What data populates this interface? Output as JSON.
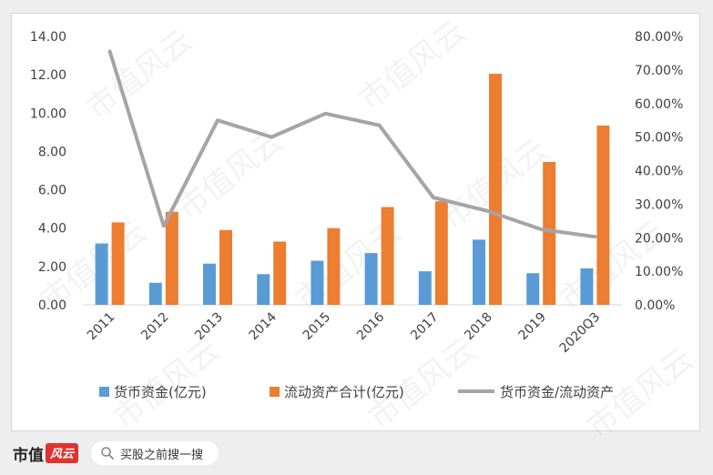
{
  "chart_data": {
    "type": "bar",
    "categories": [
      "2011",
      "2012",
      "2013",
      "2014",
      "2015",
      "2016",
      "2017",
      "2018",
      "2019",
      "2020Q3"
    ],
    "series": [
      {
        "name": "货币资金(亿元)",
        "type": "bar",
        "axis": "left",
        "color": "#5b9bd5",
        "values": [
          3.2,
          1.15,
          2.15,
          1.6,
          2.3,
          2.7,
          1.75,
          3.4,
          1.65,
          1.9
        ]
      },
      {
        "name": "流动资产合计(亿元)",
        "type": "bar",
        "axis": "left",
        "color": "#ed7d31",
        "values": [
          4.3,
          4.85,
          3.9,
          3.3,
          4.0,
          5.1,
          5.4,
          12.05,
          7.45,
          9.35
        ]
      },
      {
        "name": "货币资金/流动资产",
        "type": "line",
        "axis": "right",
        "color": "#a5a5a5",
        "values": [
          0.755,
          0.235,
          0.55,
          0.5,
          0.57,
          0.535,
          0.32,
          0.28,
          0.225,
          0.203
        ]
      }
    ],
    "y_left": {
      "min": 0,
      "max": 14,
      "ticks": [
        "0.00",
        "2.00",
        "4.00",
        "6.00",
        "8.00",
        "10.00",
        "12.00",
        "14.00"
      ]
    },
    "y_right": {
      "min": 0,
      "max": 0.8,
      "ticks": [
        "0.00%",
        "10.00%",
        "20.00%",
        "30.00%",
        "40.00%",
        "50.00%",
        "60.00%",
        "70.00%",
        "80.00%"
      ]
    },
    "legend_position": "bottom",
    "grid": false
  },
  "footer": {
    "logo_text": "市值",
    "logo_badge": "风云",
    "search_placeholder": "买股之前搜一搜"
  },
  "watermark_text": "市值风云"
}
